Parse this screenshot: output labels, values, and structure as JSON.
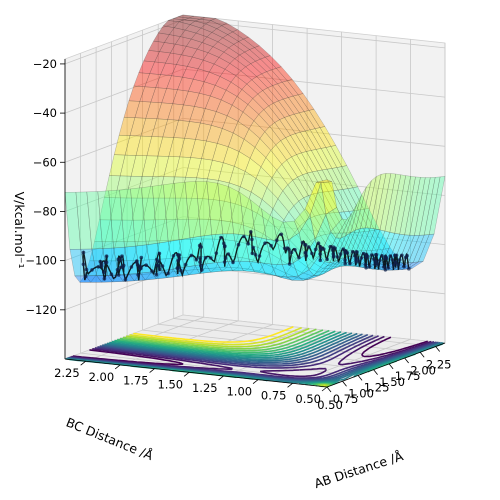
{
  "chart_data": {
    "type": "surface3d",
    "title": "",
    "xlabel": "AB Distance /Å",
    "ylabel": "BC Distance /Å",
    "zlabel": "V/kcal.mol⁻¹",
    "xlim": [
      0.5,
      2.4
    ],
    "ylim": [
      0.5,
      2.4
    ],
    "zlim": [
      -140,
      -18
    ],
    "x_ticks": [
      "0.50",
      "0.75",
      "1.00",
      "1.25",
      "1.50",
      "1.75",
      "2.00",
      "2.25"
    ],
    "y_ticks": [
      "0.50",
      "0.75",
      "1.00",
      "1.25",
      "1.50",
      "1.75",
      "2.00",
      "2.25"
    ],
    "z_ticks": [
      "−120",
      "−100",
      "−80",
      "−60",
      "−40",
      "−20"
    ],
    "x_tick_values": [
      0.5,
      0.75,
      1.0,
      1.25,
      1.5,
      1.75,
      2.0,
      2.25
    ],
    "y_tick_values": [
      0.5,
      0.75,
      1.0,
      1.25,
      1.5,
      1.75,
      2.0,
      2.25
    ],
    "z_tick_values": [
      -120,
      -100,
      -80,
      -60,
      -40,
      -20
    ],
    "surface_colormap": "jet",
    "contour_colormap": "viridis",
    "trajectory_color": "#000000",
    "grid": true,
    "view": {
      "elev": 15,
      "azim": 225
    },
    "trajectory": {
      "start": {
        "ab": 2.35,
        "bc": 0.74,
        "v": -96
      },
      "saddle": {
        "ab": 1.0,
        "bc": 1.0,
        "v": -103
      },
      "end": {
        "ab": 0.74,
        "bc": 2.35,
        "v": -104
      }
    }
  }
}
